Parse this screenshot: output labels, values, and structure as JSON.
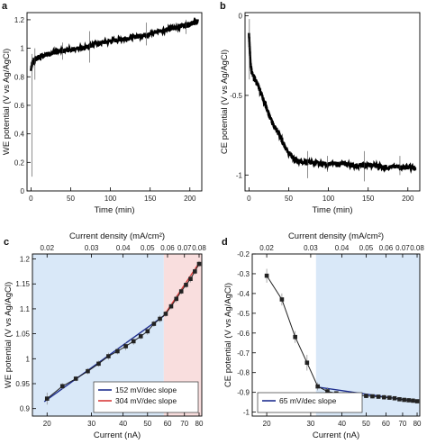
{
  "chart_data": [
    {
      "panel": "a",
      "type": "line",
      "xlabel": "Time (min)",
      "ylabel": "WE potential (V vs Ag/AgCl)",
      "xlim": [
        -5,
        215
      ],
      "ylim": [
        0,
        1.25
      ],
      "xticks": [
        0,
        50,
        100,
        150,
        200
      ],
      "yticks": [
        0,
        0.2,
        0.4,
        0.6,
        0.8,
        1,
        1.2
      ],
      "yticklabels": [
        "0",
        "0.2",
        "0.4",
        "0.6",
        "0.8",
        "1",
        "1.2"
      ],
      "color": "#000000",
      "series": [
        {
          "x": [
            0,
            1,
            2,
            3,
            5,
            8,
            10,
            15,
            20,
            30,
            40,
            50,
            60,
            70,
            80,
            90,
            100,
            110,
            120,
            130,
            140,
            150,
            160,
            170,
            180,
            190,
            200,
            205,
            210
          ],
          "y": [
            0.85,
            0.88,
            0.9,
            0.91,
            0.92,
            0.93,
            0.94,
            0.95,
            0.96,
            0.97,
            0.98,
            0.99,
            1.0,
            1.01,
            1.03,
            1.04,
            1.05,
            1.06,
            1.07,
            1.08,
            1.09,
            1.1,
            1.12,
            1.13,
            1.14,
            1.16,
            1.17,
            1.18,
            1.19
          ]
        }
      ],
      "spikes": [
        {
          "x": 1,
          "low": 0.1,
          "high": 0.96
        },
        {
          "x": 5,
          "low": 0.78,
          "high": 1.0
        },
        {
          "x": 40,
          "low": 0.92,
          "high": 1.04
        },
        {
          "x": 74,
          "low": 0.9,
          "high": 1.12
        },
        {
          "x": 145,
          "low": 1.02,
          "high": 1.18
        },
        {
          "x": 195,
          "low": 1.1,
          "high": 1.2
        }
      ]
    },
    {
      "panel": "b",
      "type": "line",
      "xlabel": "Time (min)",
      "ylabel": "CE potential (V vs Ag/AgCl)",
      "xlim": [
        -5,
        215
      ],
      "ylim": [
        -1.1,
        0.02
      ],
      "xticks": [
        0,
        50,
        100,
        150,
        200
      ],
      "yticks": [
        0,
        -0.5,
        -1
      ],
      "yticklabels": [
        "0",
        "-0.5",
        "-1"
      ],
      "color": "#000000",
      "series": [
        {
          "x": [
            0,
            1,
            2,
            3,
            5,
            10,
            15,
            20,
            25,
            30,
            35,
            40,
            45,
            50,
            55,
            60,
            70,
            80,
            90,
            100,
            110,
            120,
            130,
            140,
            150,
            160,
            170,
            180,
            190,
            200,
            210
          ],
          "y": [
            -0.12,
            -0.22,
            -0.3,
            -0.34,
            -0.38,
            -0.42,
            -0.48,
            -0.55,
            -0.62,
            -0.68,
            -0.72,
            -0.77,
            -0.82,
            -0.86,
            -0.89,
            -0.91,
            -0.92,
            -0.92,
            -0.93,
            -0.93,
            -0.93,
            -0.93,
            -0.94,
            -0.94,
            -0.94,
            -0.94,
            -0.95,
            -0.95,
            -0.95,
            -0.95,
            -0.96
          ]
        }
      ],
      "spikes": [
        {
          "x": 0.5,
          "low": -0.4,
          "high": -0.02
        },
        {
          "x": 74,
          "low": -1.02,
          "high": -0.85
        },
        {
          "x": 99,
          "low": -0.98,
          "high": -0.88
        },
        {
          "x": 145,
          "low": -1.04,
          "high": -0.85
        },
        {
          "x": 190,
          "low": -1.0,
          "high": -0.88
        }
      ]
    },
    {
      "panel": "c",
      "type": "line",
      "xlabel": "Current (nA)",
      "ylabel": "WE potential (V vs Ag/AgCl)",
      "top_xlabel": "Current density (mA/cm²)",
      "xscale": "log",
      "xlim": [
        17.5,
        82
      ],
      "ylim": [
        0.885,
        1.21
      ],
      "xticks": [
        20,
        30,
        40,
        50,
        60,
        70,
        80
      ],
      "yticks": [
        0.9,
        0.95,
        1.0,
        1.05,
        1.1,
        1.15,
        1.2
      ],
      "yticklabels": [
        "0.9",
        "0.95",
        "1",
        "1.05",
        "1.1",
        "1.15",
        "1.2"
      ],
      "top_ticks": [
        {
          "x": 20,
          "label": "0.02"
        },
        {
          "x": 30,
          "label": "0.03"
        },
        {
          "x": 40,
          "label": "0.04"
        },
        {
          "x": 50,
          "label": "0.05"
        },
        {
          "x": 60,
          "label": "0.06"
        },
        {
          "x": 70,
          "label": "0.07"
        },
        {
          "x": 80,
          "label": "0.08"
        }
      ],
      "regions": [
        {
          "from": 17.5,
          "to": 58,
          "color": "#d9e8f8"
        },
        {
          "from": 58,
          "to": 82,
          "color": "#f9dede"
        }
      ],
      "series": [
        {
          "name": "data",
          "color": "#222222",
          "marker": "square",
          "x": [
            20,
            23,
            26,
            29,
            32,
            35,
            38,
            41,
            44,
            47,
            50,
            53,
            56,
            59,
            62,
            65,
            68,
            71,
            74,
            77,
            80
          ],
          "y": [
            0.92,
            0.945,
            0.96,
            0.975,
            0.99,
            1.005,
            1.015,
            1.025,
            1.035,
            1.045,
            1.055,
            1.07,
            1.08,
            1.09,
            1.105,
            1.12,
            1.135,
            1.148,
            1.16,
            1.175,
            1.19
          ],
          "yerr": [
            0.012,
            0.006,
            0.005,
            0.006,
            0.006,
            0.007,
            0.006,
            0.008,
            0.007,
            0.006,
            0.007,
            0.006,
            0.007,
            0.006,
            0.006,
            0.007,
            0.006,
            0.006,
            0.007,
            0.006,
            0.006
          ]
        }
      ],
      "fits": [
        {
          "name": "152 mV/dec slope",
          "color": "#1f2f8f",
          "x": [
            19.5,
            58
          ],
          "y": [
            0.914,
            1.086
          ]
        },
        {
          "name": "304 mV/dec slope",
          "color": "#d93a3a",
          "x": [
            58,
            80
          ],
          "y": [
            1.086,
            1.192
          ]
        }
      ],
      "legend_loc": "lower-right"
    },
    {
      "panel": "d",
      "type": "line",
      "xlabel": "Current (nA)",
      "ylabel": "CE potential (V vs Ag/AgCl)",
      "top_xlabel": "Current density (mA/cm²)",
      "xscale": "log",
      "xlim": [
        17.5,
        82
      ],
      "ylim": [
        -1.02,
        -0.2
      ],
      "xticks": [
        20,
        30,
        40,
        50,
        60,
        70,
        80
      ],
      "yticks": [
        -0.2,
        -0.3,
        -0.4,
        -0.5,
        -0.6,
        -0.7,
        -0.8,
        -0.9,
        -1.0
      ],
      "yticklabels": [
        "-0.2",
        "-0.3",
        "-0.4",
        "-0.5",
        "-0.6",
        "-0.7",
        "-0.8",
        "-0.9",
        "-1"
      ],
      "top_ticks": [
        {
          "x": 20,
          "label": "0.02"
        },
        {
          "x": 30,
          "label": "0.03"
        },
        {
          "x": 40,
          "label": "0.04"
        },
        {
          "x": 50,
          "label": "0.05"
        },
        {
          "x": 60,
          "label": "0.06"
        },
        {
          "x": 70,
          "label": "0.07"
        },
        {
          "x": 80,
          "label": "0.08"
        }
      ],
      "regions": [
        {
          "from": 31.5,
          "to": 82,
          "color": "#d9e8f8"
        }
      ],
      "series": [
        {
          "name": "data",
          "color": "#222222",
          "marker": "square",
          "x": [
            20,
            23,
            26,
            29,
            32,
            35,
            38,
            41,
            44,
            47,
            50,
            53,
            56,
            59,
            62,
            65,
            68,
            71,
            74,
            77,
            80
          ],
          "y": [
            -0.31,
            -0.43,
            -0.62,
            -0.75,
            -0.87,
            -0.895,
            -0.905,
            -0.91,
            -0.91,
            -0.915,
            -0.918,
            -0.92,
            -0.922,
            -0.925,
            -0.927,
            -0.93,
            -0.935,
            -0.938,
            -0.94,
            -0.942,
            -0.945
          ],
          "yerr": [
            0.035,
            0.03,
            0.03,
            0.04,
            0.02,
            0.02,
            0.01,
            0.01,
            0.012,
            0.01,
            0.01,
            0.01,
            0.01,
            0.012,
            0.01,
            0.01,
            0.01,
            0.01,
            0.01,
            0.012,
            0.01
          ]
        }
      ],
      "fits": [
        {
          "name": "65 mV/dec slope",
          "color": "#1f2f8f",
          "x": [
            31.5,
            80
          ],
          "y": [
            -0.872,
            -0.947
          ]
        }
      ],
      "legend_loc": "lower-left"
    }
  ]
}
